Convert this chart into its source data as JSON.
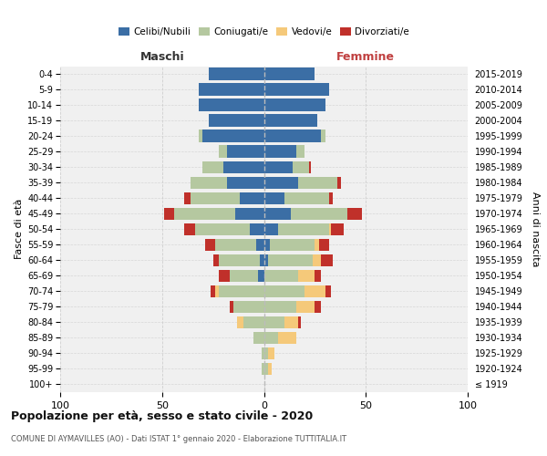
{
  "age_groups": [
    "100+",
    "95-99",
    "90-94",
    "85-89",
    "80-84",
    "75-79",
    "70-74",
    "65-69",
    "60-64",
    "55-59",
    "50-54",
    "45-49",
    "40-44",
    "35-39",
    "30-34",
    "25-29",
    "20-24",
    "15-19",
    "10-14",
    "5-9",
    "0-4"
  ],
  "birth_years": [
    "≤ 1919",
    "1920-1924",
    "1925-1929",
    "1930-1934",
    "1935-1939",
    "1940-1944",
    "1945-1949",
    "1950-1954",
    "1955-1959",
    "1960-1964",
    "1965-1969",
    "1970-1974",
    "1975-1979",
    "1980-1984",
    "1985-1989",
    "1990-1994",
    "1995-1999",
    "2000-2004",
    "2005-2009",
    "2010-2014",
    "2015-2019"
  ],
  "maschi": {
    "celibi": [
      0,
      0,
      0,
      0,
      0,
      0,
      0,
      3,
      2,
      4,
      7,
      14,
      12,
      18,
      20,
      18,
      30,
      27,
      32,
      32,
      27
    ],
    "coniugati": [
      0,
      1,
      1,
      5,
      10,
      15,
      22,
      14,
      20,
      20,
      27,
      30,
      24,
      18,
      10,
      4,
      2,
      0,
      0,
      0,
      0
    ],
    "vedovi": [
      0,
      0,
      0,
      0,
      3,
      0,
      2,
      0,
      0,
      0,
      0,
      0,
      0,
      0,
      0,
      0,
      0,
      0,
      0,
      0,
      0
    ],
    "divorziati": [
      0,
      0,
      0,
      0,
      0,
      2,
      2,
      5,
      3,
      5,
      5,
      5,
      3,
      0,
      0,
      0,
      0,
      0,
      0,
      0,
      0
    ]
  },
  "femmine": {
    "nubili": [
      0,
      0,
      0,
      0,
      0,
      0,
      0,
      0,
      2,
      3,
      7,
      13,
      10,
      17,
      14,
      16,
      28,
      26,
      30,
      32,
      25
    ],
    "coniugate": [
      0,
      2,
      2,
      7,
      10,
      16,
      20,
      17,
      22,
      22,
      25,
      28,
      22,
      19,
      8,
      4,
      2,
      0,
      0,
      0,
      0
    ],
    "vedove": [
      0,
      2,
      3,
      9,
      7,
      9,
      10,
      8,
      4,
      2,
      1,
      0,
      0,
      0,
      0,
      0,
      0,
      0,
      0,
      0,
      0
    ],
    "divorziate": [
      0,
      0,
      0,
      0,
      1,
      3,
      3,
      3,
      6,
      5,
      6,
      7,
      2,
      2,
      1,
      0,
      0,
      0,
      0,
      0,
      0
    ]
  },
  "colors": {
    "celibi": "#3b6ea5",
    "coniugati": "#b5c8a0",
    "vedovi": "#f5c97a",
    "divorziati": "#c0302a"
  },
  "xlim": 100,
  "title": "Popolazione per età, sesso e stato civile - 2020",
  "subtitle": "COMUNE DI AYMAVILLES (AO) - Dati ISTAT 1° gennaio 2020 - Elaborazione TUTTITALIA.IT",
  "ylabel_left": "Fasce di età",
  "ylabel_right": "Anni di nascita",
  "xlabel_left": "Maschi",
  "xlabel_right": "Femmine",
  "bg_color": "#f0f0f0",
  "grid_color": "#cccccc"
}
